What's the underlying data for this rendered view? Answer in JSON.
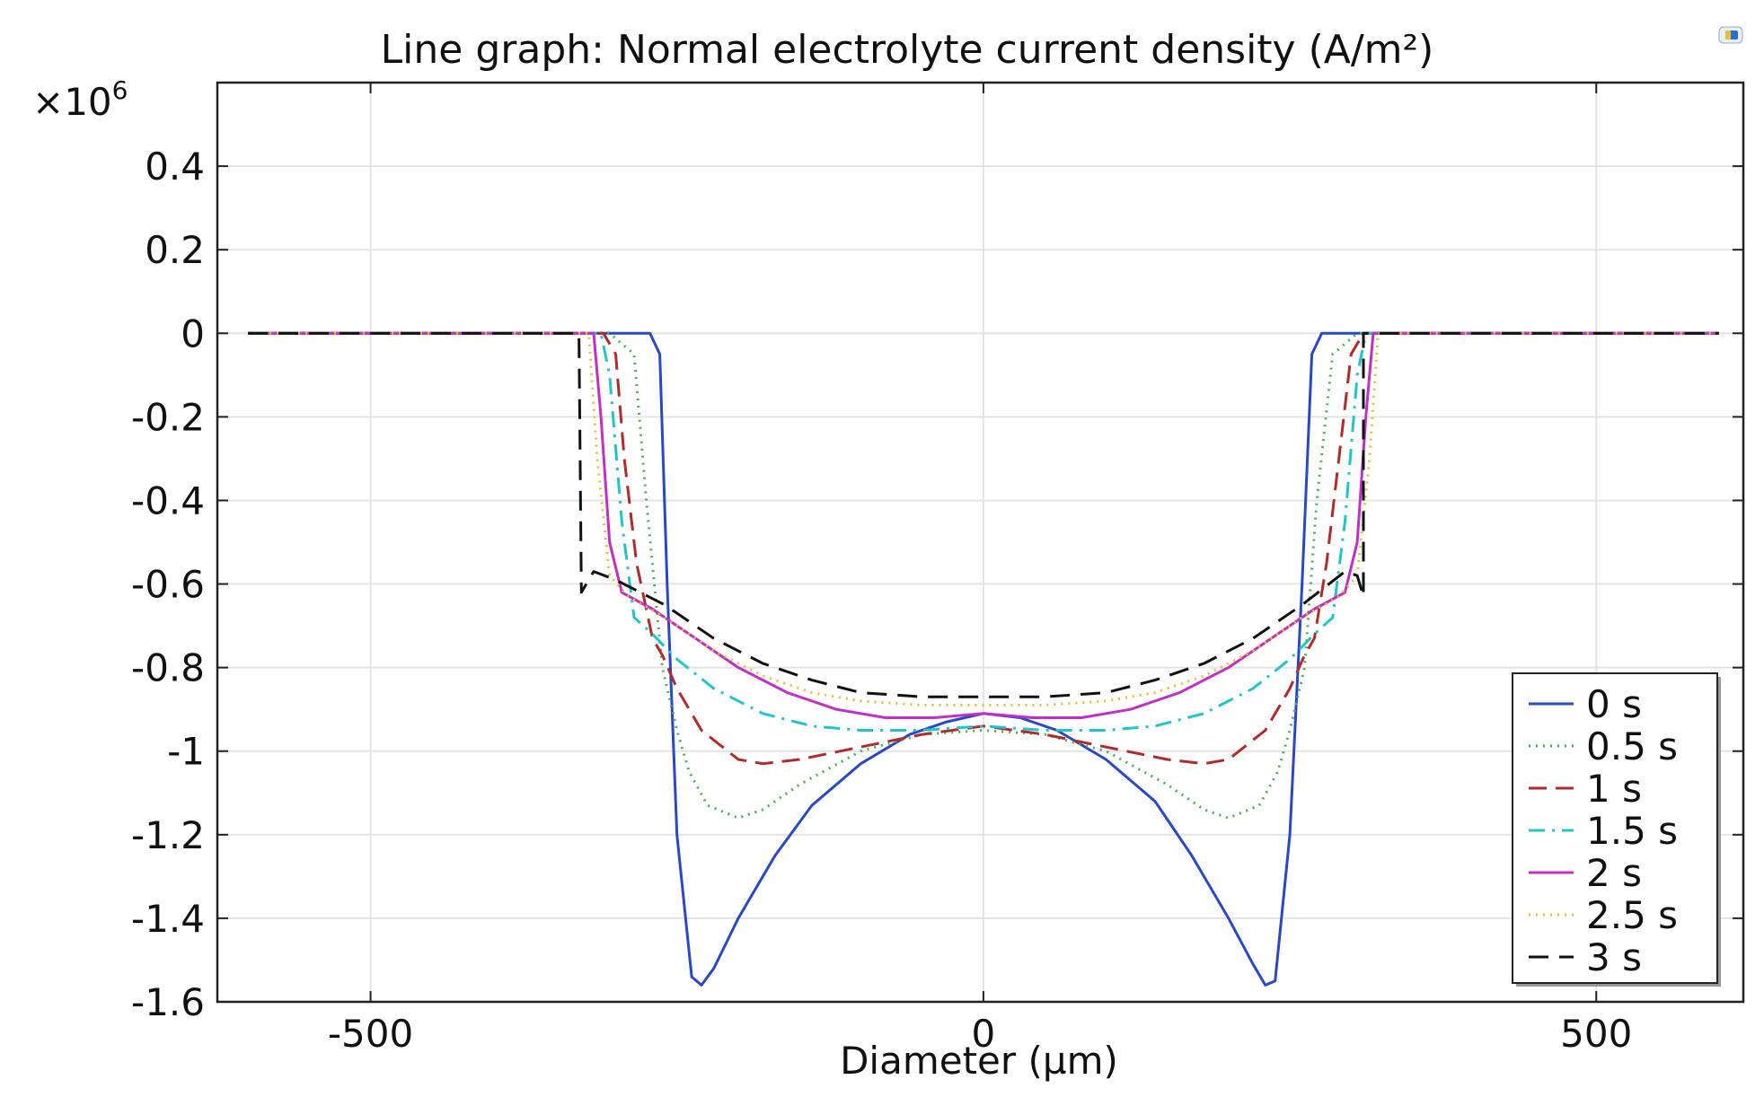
{
  "chart_data": {
    "type": "line",
    "title": "Line graph: Normal electrolyte current density (A/m²)",
    "xlabel": "Diameter (µm)",
    "ylabel": "",
    "y_multiplier": "×10",
    "y_multiplier_exp": "6",
    "xlim": [
      -625,
      620
    ],
    "ylim": [
      -1.6,
      0.6
    ],
    "x_ticks": [
      -500,
      0,
      500
    ],
    "x_tick_labels": [
      "-500",
      "0",
      "500"
    ],
    "y_ticks": [
      0.4,
      0.2,
      0,
      -0.2,
      -0.4,
      -0.6,
      -0.8,
      -1,
      -1.2,
      -1.4,
      -1.6
    ],
    "y_tick_labels": [
      "0.4",
      "0.2",
      "0",
      "-0.2",
      "-0.4",
      "-0.6",
      "-0.8",
      "-1",
      "-1.2",
      "-1.4",
      "-1.6"
    ],
    "grid": true,
    "legend_position": "bottom-right",
    "series": [
      {
        "name": "0 s",
        "color": "#2a48c4",
        "dash": "solid",
        "x": [
          -600,
          -300,
          -272,
          -264,
          -258,
          -250,
          -238,
          -230,
          -220,
          -200,
          -170,
          -140,
          -100,
          -60,
          -30,
          0,
          30,
          60,
          100,
          140,
          170,
          200,
          220,
          230,
          238,
          250,
          260,
          268,
          276,
          300,
          600
        ],
        "y": [
          0,
          0,
          0,
          -0.05,
          -0.6,
          -1.2,
          -1.54,
          -1.56,
          -1.52,
          -1.4,
          -1.25,
          -1.13,
          -1.03,
          -0.96,
          -0.93,
          -0.91,
          -0.92,
          -0.95,
          -1.02,
          -1.12,
          -1.25,
          -1.4,
          -1.51,
          -1.56,
          -1.55,
          -1.2,
          -0.6,
          -0.05,
          0,
          0,
          0
        ]
      },
      {
        "name": "0.5 s",
        "color": "#4caf50",
        "dash": "dot",
        "x": [
          -600,
          -305,
          -285,
          -275,
          -262,
          -250,
          -240,
          -225,
          -200,
          -180,
          -150,
          -100,
          -50,
          0,
          50,
          100,
          150,
          180,
          200,
          225,
          240,
          250,
          262,
          272,
          285,
          305,
          600
        ],
        "y": [
          0,
          0,
          -0.05,
          -0.4,
          -0.8,
          -0.95,
          -1.05,
          -1.13,
          -1.16,
          -1.14,
          -1.08,
          -1.0,
          -0.96,
          -0.95,
          -0.96,
          -1.0,
          -1.08,
          -1.14,
          -1.16,
          -1.13,
          -1.05,
          -0.95,
          -0.8,
          -0.4,
          -0.05,
          0,
          0
        ]
      },
      {
        "name": "1 s",
        "color": "#b22a2a",
        "dash": "dash",
        "x": [
          -600,
          -310,
          -300,
          -293,
          -283,
          -270,
          -262,
          -250,
          -230,
          -200,
          -180,
          -150,
          -100,
          -50,
          0,
          50,
          100,
          150,
          180,
          200,
          230,
          250,
          262,
          270,
          280,
          290,
          300,
          310,
          600
        ],
        "y": [
          0,
          0,
          -0.05,
          -0.3,
          -0.55,
          -0.73,
          -0.77,
          -0.85,
          -0.95,
          -1.02,
          -1.03,
          -1.02,
          -0.99,
          -0.96,
          -0.94,
          -0.96,
          -0.99,
          -1.02,
          -1.03,
          -1.02,
          -0.95,
          -0.85,
          -0.77,
          -0.73,
          -0.55,
          -0.3,
          -0.05,
          0,
          0
        ]
      },
      {
        "name": "1.5 s",
        "color": "#22c4cc",
        "dash": "dashdot",
        "x": [
          -600,
          -312,
          -305,
          -295,
          -285,
          -270,
          -250,
          -220,
          -180,
          -140,
          -100,
          -50,
          0,
          50,
          100,
          140,
          180,
          220,
          250,
          270,
          285,
          295,
          305,
          312,
          600
        ],
        "y": [
          0,
          0,
          -0.1,
          -0.45,
          -0.68,
          -0.72,
          -0.78,
          -0.85,
          -0.91,
          -0.94,
          -0.95,
          -0.95,
          -0.94,
          -0.95,
          -0.95,
          -0.94,
          -0.91,
          -0.85,
          -0.78,
          -0.72,
          -0.68,
          -0.45,
          -0.1,
          0,
          0
        ]
      },
      {
        "name": "2 s",
        "color": "#c030c8",
        "dash": "solid",
        "x": [
          -600,
          -318,
          -312,
          -305,
          -295,
          -270,
          -240,
          -200,
          -160,
          -120,
          -80,
          -40,
          0,
          40,
          80,
          120,
          160,
          200,
          240,
          270,
          295,
          305,
          312,
          318,
          600
        ],
        "y": [
          0,
          0,
          -0.2,
          -0.5,
          -0.62,
          -0.66,
          -0.72,
          -0.8,
          -0.86,
          -0.9,
          -0.92,
          -0.92,
          -0.91,
          -0.92,
          -0.92,
          -0.9,
          -0.86,
          -0.8,
          -0.72,
          -0.66,
          -0.62,
          -0.5,
          -0.2,
          0,
          0
        ]
      },
      {
        "name": "2.5 s",
        "color": "#e3c03a",
        "dash": "dot",
        "x": [
          -600,
          -322,
          -315,
          -305,
          -290,
          -260,
          -220,
          -180,
          -140,
          -100,
          -50,
          0,
          50,
          100,
          140,
          180,
          220,
          260,
          290,
          305,
          315,
          322,
          600
        ],
        "y": [
          0,
          0,
          -0.3,
          -0.58,
          -0.63,
          -0.68,
          -0.76,
          -0.82,
          -0.86,
          -0.88,
          -0.89,
          -0.89,
          -0.89,
          -0.88,
          -0.86,
          -0.82,
          -0.76,
          -0.68,
          -0.63,
          -0.58,
          -0.3,
          0,
          0
        ]
      },
      {
        "name": "3 s",
        "color": "#111111",
        "dash": "longdash",
        "x": [
          -600,
          -330,
          -328,
          -318,
          -300,
          -260,
          -220,
          -180,
          -140,
          -100,
          -50,
          0,
          50,
          100,
          140,
          180,
          220,
          260,
          295,
          305,
          310,
          310,
          600
        ],
        "y": [
          0,
          0,
          -0.62,
          -0.57,
          -0.59,
          -0.65,
          -0.73,
          -0.79,
          -0.83,
          -0.86,
          -0.87,
          -0.87,
          -0.87,
          -0.86,
          -0.83,
          -0.79,
          -0.73,
          -0.65,
          -0.57,
          -0.58,
          -0.63,
          0,
          0
        ]
      }
    ]
  },
  "corner_icon": "window-badge-icon"
}
